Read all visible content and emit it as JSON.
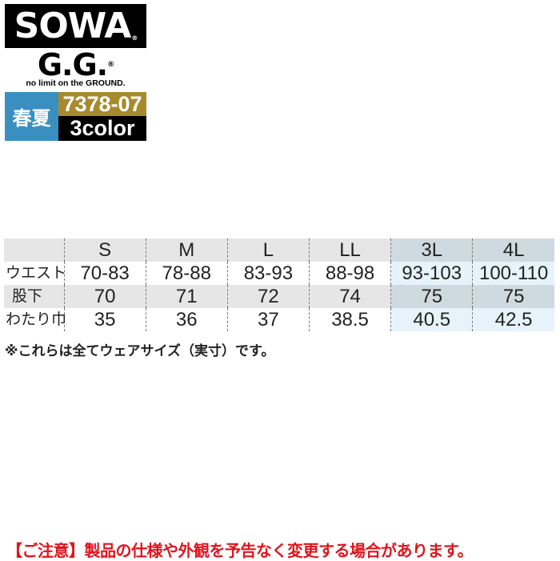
{
  "brand": {
    "logo": "SOWA",
    "logo_mark": "®",
    "sub_logo": "G.G.",
    "sub_logo_mark": "®",
    "tagline": "no limit on the GROUND."
  },
  "product": {
    "season": "春夏",
    "model": "7378-07",
    "colors": "3color"
  },
  "size_table": {
    "headers": [
      "",
      "S",
      "M",
      "L",
      "LL",
      "3L",
      "4L"
    ],
    "rows": [
      {
        "label": "ウエスト",
        "values": [
          "70-83",
          "78-88",
          "83-93",
          "88-98",
          "93-103",
          "100-110"
        ]
      },
      {
        "label": "股下",
        "values": [
          "70",
          "71",
          "72",
          "74",
          "75",
          "75"
        ]
      },
      {
        "label": "わたり巾",
        "values": [
          "35",
          "36",
          "37",
          "38.5",
          "40.5",
          "42.5"
        ]
      }
    ]
  },
  "note": "※これらは全てウェアサイズ（実寸）です。",
  "caution": "【ご注意】製品の仕様や外観を予告なく変更する場合があります。",
  "colors_theme": {
    "season_bg": "#3a8fc1",
    "model_bg": "#a88a2e",
    "caution_text": "#e0141e",
    "large_size_header": "#cfd9e0",
    "large_size_cell": "#e6f3fb"
  }
}
